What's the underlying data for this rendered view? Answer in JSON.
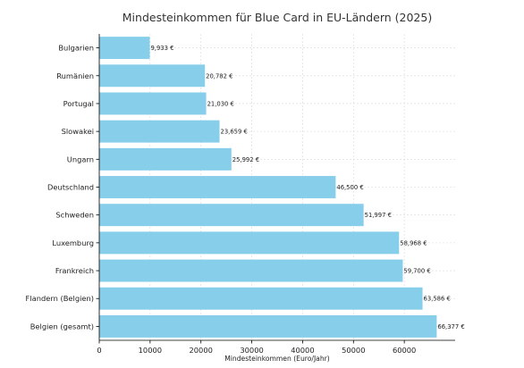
{
  "chart_data": {
    "type": "bar",
    "orientation": "horizontal",
    "title": "Mindesteinkommen für Blue Card in EU-Ländern (2025)",
    "xlabel": "Mindesteinkommen (Euro/Jahr)",
    "ylabel": "",
    "categories": [
      "Bulgarien",
      "Rumänien",
      "Portugal",
      "Slowakei",
      "Ungarn",
      "Deutschland",
      "Schweden",
      "Luxemburg",
      "Frankreich",
      "Flandern (Belgien)",
      "Belgien (gesamt)"
    ],
    "values": [
      9933,
      20782,
      21030,
      23659,
      25992,
      46500,
      51997,
      58968,
      59700,
      63586,
      66377
    ],
    "value_labels": [
      "9,933 €",
      "20,782 €",
      "21,030 €",
      "23,659 €",
      "25,992 €",
      "46,500 €",
      "51,997 €",
      "58,968 €",
      "59,700 €",
      "63,586 €",
      "66,377 €"
    ],
    "xticks": [
      0,
      10000,
      20000,
      30000,
      40000,
      50000,
      60000
    ],
    "xlim": [
      0,
      70000
    ],
    "grid": true,
    "colors": {
      "bar": "#87ceeb",
      "grid": "#d9d9d9",
      "axis": "#000000"
    }
  }
}
